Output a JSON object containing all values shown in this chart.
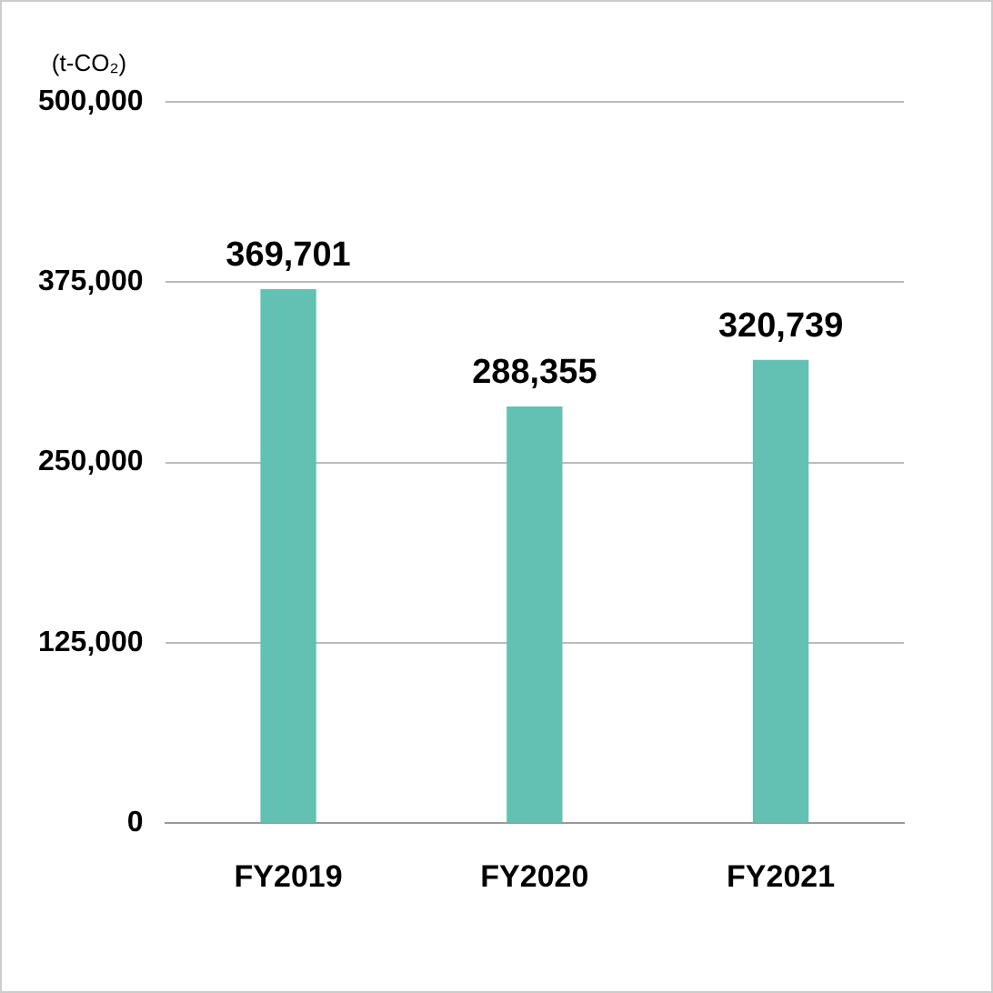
{
  "chart_data": {
    "type": "bar",
    "ylabel": "(t-CO₂)",
    "categories": [
      "FY2019",
      "FY2020",
      "FY2021"
    ],
    "values": [
      369701,
      288355,
      320739
    ],
    "value_labels": [
      "369,701",
      "288,355",
      "320,739"
    ],
    "color": "#63c1b3",
    "ylim": [
      0,
      500000
    ],
    "yticks": [
      0,
      {
        "value": 125000,
        "label": "125,000"
      },
      {
        "value": 250000,
        "label": "250,000"
      },
      {
        "value": 375000,
        "label": "375,000"
      },
      {
        "value": 500000,
        "label": "500,000"
      }
    ],
    "grid": "y"
  }
}
